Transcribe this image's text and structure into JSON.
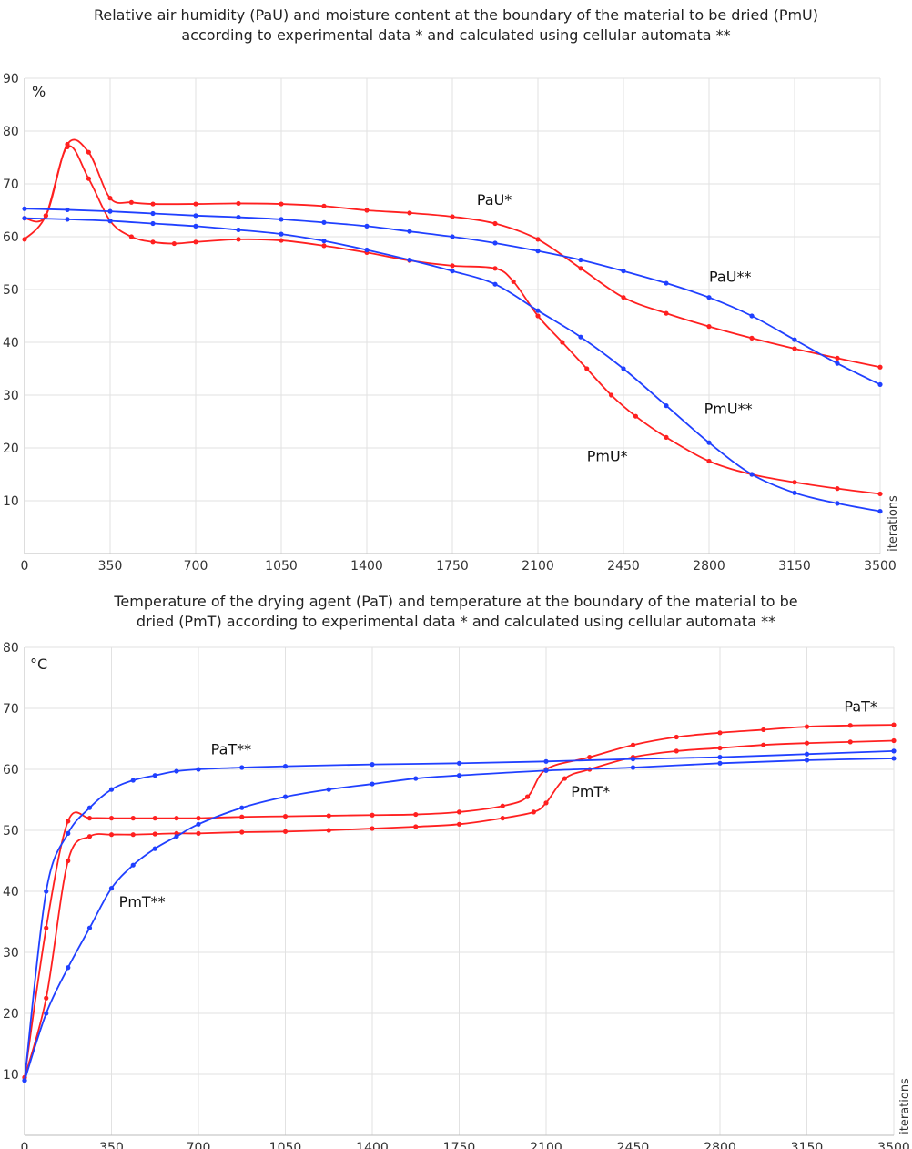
{
  "chart_data": [
    {
      "type": "line",
      "title_line1": "Relative air humidity (PaU) and moisture content at the boundary of the material to be dried (PmU)",
      "title_line2": "according to experimental data * and calculated using cellular automata **",
      "ylabel": "%",
      "xlabel": "iterations",
      "xlim": [
        0,
        3500
      ],
      "ylim": [
        0,
        90
      ],
      "x_ticks": [
        "0",
        "350",
        "700",
        "1050",
        "1400",
        "1750",
        "2100",
        "2450",
        "2800",
        "3150",
        "3500"
      ],
      "y_ticks": [
        "10",
        "20",
        "30",
        "40",
        "50",
        "60",
        "70",
        "80",
        "90"
      ],
      "grid": true,
      "series": [
        {
          "name": "PaU*",
          "color": "#ff2020",
          "x": [
            0,
            87,
            175,
            262,
            350,
            437,
            525,
            700,
            875,
            1050,
            1225,
            1400,
            1575,
            1750,
            1925,
            2100,
            2275,
            2450,
            2625,
            2800,
            2975,
            3150,
            3325,
            3500
          ],
          "y": [
            63.5,
            64,
            77.5,
            76,
            67.3,
            66.5,
            66.2,
            66.2,
            66.3,
            66.2,
            65.8,
            65,
            64.5,
            63.8,
            62.5,
            59.5,
            54,
            48.5,
            45.5,
            43,
            40.8,
            38.8,
            37,
            35.3
          ]
        },
        {
          "name": "PmU*",
          "color": "#ff2020",
          "x": [
            0,
            87,
            175,
            262,
            350,
            437,
            525,
            612,
            700,
            875,
            1050,
            1225,
            1400,
            1575,
            1750,
            1925,
            2000,
            2100,
            2200,
            2300,
            2400,
            2500,
            2625,
            2800,
            2975,
            3150,
            3325,
            3500
          ],
          "y": [
            59.5,
            64,
            77,
            71,
            63,
            60,
            59,
            58.7,
            59,
            59.5,
            59.3,
            58.3,
            57,
            55.5,
            54.5,
            54,
            51.5,
            45,
            40,
            35,
            30,
            26,
            22,
            17.5,
            15,
            13.5,
            12.3,
            11.3
          ]
        },
        {
          "name": "PaU**",
          "color": "#2040ff",
          "x": [
            0,
            175,
            350,
            525,
            700,
            875,
            1050,
            1225,
            1400,
            1575,
            1750,
            1925,
            2100,
            2275,
            2450,
            2625,
            2800,
            2975,
            3150,
            3325,
            3500
          ],
          "y": [
            65.3,
            65.1,
            64.8,
            64.4,
            64,
            63.7,
            63.3,
            62.7,
            62,
            61,
            60,
            58.8,
            57.3,
            55.6,
            53.5,
            51.2,
            48.5,
            45,
            40.5,
            36,
            32
          ]
        },
        {
          "name": "PmU**",
          "color": "#2040ff",
          "x": [
            0,
            175,
            350,
            525,
            700,
            875,
            1050,
            1225,
            1400,
            1575,
            1750,
            1925,
            2100,
            2275,
            2450,
            2625,
            2800,
            2975,
            3150,
            3325,
            3500
          ],
          "y": [
            63.5,
            63.3,
            63,
            62.5,
            62,
            61.3,
            60.5,
            59.2,
            57.5,
            55.6,
            53.5,
            51,
            46,
            41,
            35,
            28,
            21,
            15,
            11.5,
            9.5,
            8
          ]
        }
      ],
      "annotations": [
        "PaU*",
        "PaU**",
        "PmU**",
        "PmU*"
      ]
    },
    {
      "type": "line",
      "title_line1": "Temperature of the drying agent (PaT) and temperature at the boundary of the material to be",
      "title_line2": "dried (PmT) according to experimental data * and calculated using cellular automata **",
      "ylabel": "°C",
      "xlabel": "iterations",
      "xlim": [
        0,
        3500
      ],
      "ylim": [
        0,
        80
      ],
      "x_ticks": [
        "0",
        "350",
        "700",
        "1050",
        "1400",
        "1750",
        "2100",
        "2450",
        "2800",
        "3150",
        "3500"
      ],
      "y_ticks": [
        "10",
        "20",
        "30",
        "40",
        "50",
        "60",
        "70",
        "80"
      ],
      "grid": true,
      "series": [
        {
          "name": "PaT*",
          "color": "#ff2020",
          "x": [
            0,
            87,
            175,
            262,
            350,
            437,
            525,
            612,
            700,
            875,
            1050,
            1225,
            1400,
            1575,
            1750,
            1925,
            2025,
            2100,
            2275,
            2450,
            2625,
            2800,
            2975,
            3150,
            3325,
            3500
          ],
          "y": [
            9.5,
            34,
            51.5,
            52,
            52,
            52,
            52,
            52,
            52,
            52.2,
            52.3,
            52.4,
            52.5,
            52.6,
            53,
            54,
            55.5,
            60,
            62,
            64,
            65.3,
            66,
            66.5,
            67,
            67.2,
            67.3
          ]
        },
        {
          "name": "PmT*",
          "color": "#ff2020",
          "x": [
            0,
            87,
            175,
            262,
            350,
            437,
            525,
            612,
            700,
            875,
            1050,
            1225,
            1400,
            1575,
            1750,
            1925,
            2050,
            2100,
            2175,
            2275,
            2450,
            2625,
            2800,
            2975,
            3150,
            3325,
            3500
          ],
          "y": [
            9.5,
            22.5,
            45,
            49,
            49.3,
            49.3,
            49.4,
            49.5,
            49.5,
            49.7,
            49.8,
            50,
            50.3,
            50.6,
            51,
            52,
            53,
            54.5,
            58.5,
            60,
            62,
            63,
            63.5,
            64,
            64.3,
            64.5,
            64.7
          ]
        },
        {
          "name": "PaT**",
          "color": "#2040ff",
          "x": [
            0,
            87,
            175,
            262,
            350,
            437,
            525,
            612,
            700,
            875,
            1050,
            1400,
            1750,
            2100,
            2450,
            2800,
            3150,
            3500
          ],
          "y": [
            9,
            40,
            49.5,
            53.7,
            56.7,
            58.2,
            59,
            59.7,
            60,
            60.3,
            60.5,
            60.8,
            61,
            61.3,
            61.7,
            62,
            62.5,
            63
          ]
        },
        {
          "name": "PmT**",
          "color": "#2040ff",
          "x": [
            0,
            87,
            175,
            262,
            350,
            437,
            525,
            612,
            700,
            875,
            1050,
            1225,
            1400,
            1575,
            1750,
            2100,
            2450,
            2800,
            3150,
            3500
          ],
          "y": [
            9,
            20,
            27.5,
            34,
            40.5,
            44.3,
            47,
            49,
            51,
            53.7,
            55.5,
            56.7,
            57.6,
            58.5,
            59,
            59.8,
            60.3,
            61,
            61.5,
            61.8
          ]
        }
      ],
      "annotations": [
        "PaT*",
        "PaT**",
        "PmT*",
        "PmT**"
      ]
    }
  ]
}
